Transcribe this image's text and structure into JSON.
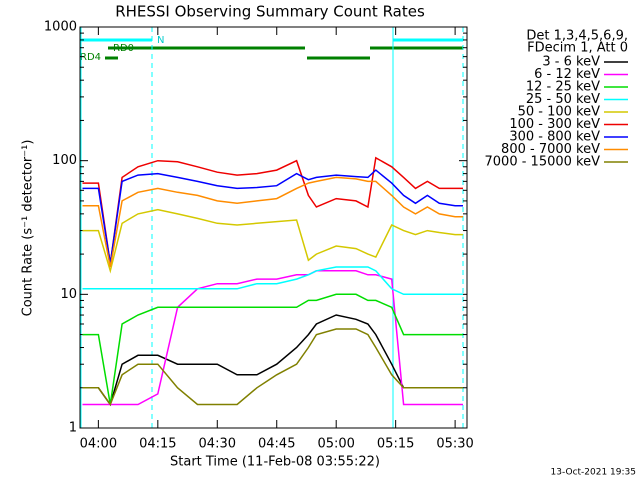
{
  "chart_data": {
    "type": "line",
    "title": "RHESSI Observing Summary Count Rates",
    "x_label": "Start Time (11-Feb-08 03:55:22)",
    "y_label": "Count Rate (s⁻¹ detector⁻¹)",
    "log_y": true,
    "x": [
      "03:56",
      "04:00",
      "04:03",
      "04:06",
      "04:10",
      "04:15",
      "04:20",
      "04:25",
      "04:30",
      "04:35",
      "04:40",
      "04:45",
      "04:50",
      "04:53",
      "04:55",
      "05:00",
      "05:05",
      "05:08",
      "05:10",
      "05:14",
      "05:17",
      "05:20",
      "05:23",
      "05:26",
      "05:30",
      "05:32"
    ],
    "xlim": [
      "03:55:22",
      "05:33"
    ],
    "xticks": [
      "04:00",
      "04:15",
      "04:30",
      "04:45",
      "05:00",
      "05:15",
      "05:30"
    ],
    "ylim": [
      1,
      1000
    ],
    "yticks": [
      1,
      10,
      100,
      1000
    ],
    "legend_header": [
      "Det 1,3,4,5,6,9,",
      "FDecim 1, Att 0"
    ],
    "flags": [
      "N",
      "RD0",
      "RD4"
    ],
    "footer": "13-Oct-2021 19:35",
    "series": [
      {
        "name": "3 - 6 keV",
        "color": "#000000",
        "values": [
          2,
          2,
          1.5,
          3,
          3.5,
          3.5,
          3,
          3,
          3,
          2.5,
          2.5,
          3,
          4,
          5,
          6,
          7,
          6.5,
          6,
          5,
          3,
          2,
          2,
          2,
          2,
          2,
          2
        ]
      },
      {
        "name": "6 - 12 keV",
        "color": "#ff00ff",
        "values": [
          1.5,
          1.5,
          1.5,
          1.5,
          1.5,
          1.8,
          8,
          11,
          12,
          12,
          13,
          13,
          14,
          14,
          15,
          15,
          15,
          14,
          14,
          13,
          1.5,
          1.5,
          1.5,
          1.5,
          1.5,
          1.5
        ]
      },
      {
        "name": "12 - 25 keV",
        "color": "#00dd00",
        "values": [
          5,
          5,
          1.5,
          6,
          7,
          8,
          8,
          8,
          8,
          8,
          8,
          8,
          8,
          9,
          9,
          10,
          10,
          9,
          9,
          8,
          5,
          5,
          5,
          5,
          5,
          5
        ]
      },
      {
        "name": "25 - 50 keV",
        "color": "#00ffff",
        "values": [
          11,
          11,
          11,
          11,
          11,
          11,
          11,
          11,
          11,
          11,
          12,
          12,
          13,
          14,
          15,
          16,
          16,
          16,
          15,
          11,
          10,
          10,
          10,
          10,
          10,
          10
        ]
      },
      {
        "name": "50 - 100 keV",
        "color": "#d4c800",
        "values": [
          30,
          30,
          15,
          34,
          40,
          43,
          40,
          37,
          34,
          33,
          34,
          35,
          36,
          18,
          20,
          23,
          22,
          20,
          19,
          33,
          30,
          28,
          30,
          29,
          28,
          28
        ]
      },
      {
        "name": "100 - 300 keV",
        "color": "#ee0000",
        "values": [
          68,
          68,
          17,
          75,
          90,
          100,
          98,
          90,
          82,
          78,
          80,
          85,
          100,
          55,
          45,
          52,
          50,
          45,
          105,
          90,
          75,
          62,
          70,
          62,
          62,
          62
        ]
      },
      {
        "name": "300 - 800 keV",
        "color": "#0000ff",
        "values": [
          62,
          62,
          17,
          70,
          78,
          80,
          75,
          70,
          65,
          62,
          63,
          65,
          80,
          72,
          75,
          78,
          76,
          75,
          85,
          68,
          55,
          48,
          55,
          48,
          46,
          46
        ]
      },
      {
        "name": "800 - 7000 keV",
        "color": "#ff8c00",
        "values": [
          46,
          46,
          16,
          50,
          58,
          62,
          58,
          55,
          50,
          48,
          50,
          52,
          62,
          68,
          70,
          75,
          73,
          70,
          70,
          55,
          45,
          40,
          45,
          40,
          38,
          38
        ]
      },
      {
        "name": "7000 - 15000 keV",
        "color": "#808000",
        "values": [
          2,
          2,
          1.5,
          2.5,
          3,
          3,
          2,
          1.5,
          1.5,
          1.5,
          2,
          2.5,
          3,
          4,
          5,
          5.5,
          5.5,
          5,
          4,
          2.5,
          2,
          2,
          2,
          2,
          2,
          2
        ]
      }
    ]
  }
}
